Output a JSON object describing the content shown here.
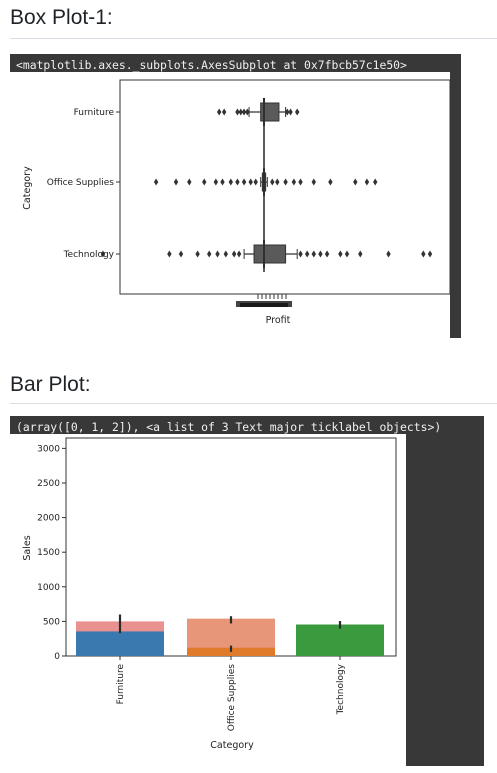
{
  "sections": {
    "box_heading": "Box Plot-1:",
    "bar_heading": "Bar Plot:"
  },
  "outputs": {
    "box_repr": "<matplotlib.axes._subplots.AxesSubplot at 0x7fbcb57c1e50>",
    "bar_repr": "(array([0, 1, 2]), <a list of 3 Text major ticklabel objects>)"
  },
  "colors": {
    "panel": "#383838",
    "furniture": "#e8918f",
    "furniture_overlay": "#3a78b0",
    "office": "#e8967a",
    "office_overlay": "#e07b2c",
    "technology": "#3a9a3e"
  },
  "chart_data": [
    {
      "type": "box",
      "orientation": "horizontal",
      "categories": [
        "Furniture",
        "Office Supplies",
        "Technology"
      ],
      "ylabel": "Category",
      "xlabel": "Profit",
      "xticks_overlapping": true,
      "xlim_relative": [
        -1.0,
        1.0
      ],
      "series": [
        {
          "name": "Furniture",
          "median": 0.0,
          "box": [
            -0.02,
            0.09
          ],
          "whiskers": [
            -0.09,
            0.13
          ],
          "outliers": [
            -0.27,
            -0.24,
            -0.16,
            -0.14,
            -0.12,
            -0.1,
            0.14,
            0.16,
            0.2
          ]
        },
        {
          "name": "Office Supplies",
          "median": 0.0,
          "box": [
            -0.01,
            0.01
          ],
          "whiskers": [
            -0.02,
            0.02
          ],
          "outliers": [
            -0.65,
            -0.53,
            -0.45,
            -0.36,
            -0.29,
            -0.25,
            -0.2,
            -0.16,
            -0.12,
            -0.08,
            -0.05,
            0.05,
            0.08,
            0.13,
            0.18,
            0.22,
            0.3,
            0.4,
            0.55,
            0.62,
            0.67
          ]
        },
        {
          "name": "Technology",
          "median": 0.0,
          "box": [
            -0.06,
            0.13
          ],
          "whiskers": [
            -0.12,
            0.2
          ],
          "outliers": [
            -0.97,
            -0.57,
            -0.5,
            -0.4,
            -0.33,
            -0.28,
            -0.23,
            -0.18,
            -0.15,
            0.22,
            0.26,
            0.3,
            0.34,
            0.38,
            0.46,
            0.5,
            0.58,
            0.75,
            0.96,
            1.0
          ]
        }
      ]
    },
    {
      "type": "bar",
      "categories": [
        "Furniture",
        "Office Supplies",
        "Technology"
      ],
      "xlabel": "Category",
      "ylabel": "Sales",
      "ylim": [
        0,
        3150
      ],
      "yticks": [
        0,
        500,
        1000,
        1500,
        2000,
        2500,
        3000
      ],
      "series": [
        {
          "values": [
            500,
            540,
            450
          ],
          "error_bars": [
            [
              330,
              600
            ],
            [
              470,
              575
            ],
            [
              395,
              505
            ]
          ]
        },
        {
          "values": [
            355,
            120,
            455
          ],
          "error_bars": [
            [
              null,
              null
            ],
            [
              60,
              150
            ],
            [
              null,
              null
            ]
          ]
        }
      ]
    }
  ]
}
